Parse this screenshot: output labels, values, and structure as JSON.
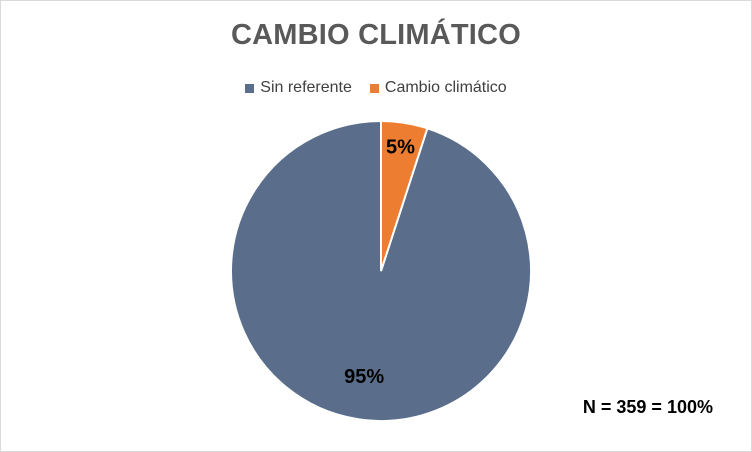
{
  "chart_data": {
    "type": "pie",
    "title": "CAMBIO CLIMÁTICO",
    "categories": [
      "Sin referente",
      "Cambio climático"
    ],
    "values": [
      95,
      5
    ],
    "labels": [
      "95%",
      "5%"
    ],
    "colors": [
      "#5a6e8c",
      "#ed7d31"
    ],
    "legend_position": "top",
    "annotation": "N = 359 = 100%"
  }
}
